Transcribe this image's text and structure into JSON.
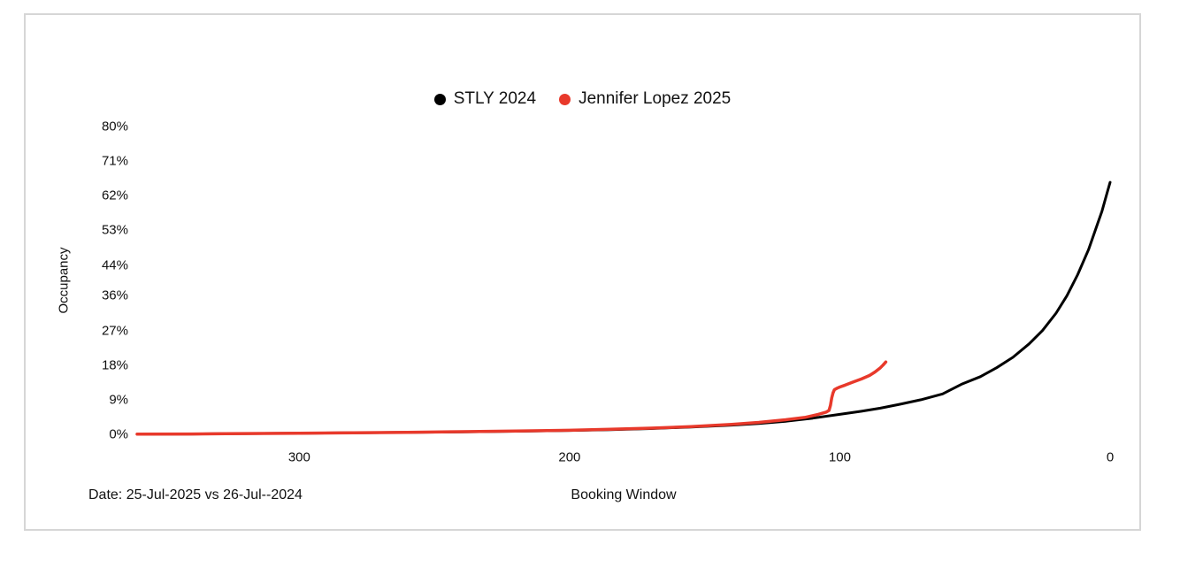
{
  "page": {
    "background": "#ffffff"
  },
  "card": {
    "border_color": "#d6d6d6",
    "background": "#ffffff"
  },
  "legend": [
    {
      "label": "STLY 2024",
      "color": "#000000"
    },
    {
      "label": "Jennifer Lopez 2025",
      "color": "#e8392b"
    }
  ],
  "footer": {
    "date_note": "Date: 25-Jul-2025 vs 26-Jul--2024"
  },
  "chart_data": {
    "type": "line",
    "title": "",
    "xlabel": "Booking Window",
    "ylabel": "Occupancy",
    "x_axis_reversed": true,
    "x_range": [
      360,
      0
    ],
    "y_range_pct": [
      0,
      80
    ],
    "grid": false,
    "legend_position": "top-center",
    "x_ticks": [
      {
        "label": "300",
        "value": 300
      },
      {
        "label": "200",
        "value": 200
      },
      {
        "label": "100",
        "value": 100
      },
      {
        "label": "0",
        "value": 0
      }
    ],
    "y_ticks": [
      {
        "label": "80%",
        "value": 80
      },
      {
        "label": "71%",
        "value": 71
      },
      {
        "label": "62%",
        "value": 62
      },
      {
        "label": "53%",
        "value": 53
      },
      {
        "label": "44%",
        "value": 44
      },
      {
        "label": "36%",
        "value": 36
      },
      {
        "label": "27%",
        "value": 27
      },
      {
        "label": "18%",
        "value": 18
      },
      {
        "label": "9%",
        "value": 9
      },
      {
        "label": "0%",
        "value": 0
      }
    ],
    "series": [
      {
        "name": "STLY 2024",
        "color": "#000000",
        "stroke_width": 3,
        "points": [
          [
            360,
            0.05
          ],
          [
            340,
            0.1
          ],
          [
            320,
            0.2
          ],
          [
            300,
            0.3
          ],
          [
            280,
            0.4
          ],
          [
            260,
            0.5
          ],
          [
            240,
            0.65
          ],
          [
            220,
            0.8
          ],
          [
            200,
            1.0
          ],
          [
            185,
            1.2
          ],
          [
            170,
            1.5
          ],
          [
            155,
            1.9
          ],
          [
            140,
            2.4
          ],
          [
            130,
            2.8
          ],
          [
            120,
            3.4
          ],
          [
            110,
            4.2
          ],
          [
            100,
            5.2
          ],
          [
            92,
            6.0
          ],
          [
            85,
            6.8
          ],
          [
            78,
            7.8
          ],
          [
            70,
            9.0
          ],
          [
            62,
            10.5
          ],
          [
            55,
            13.0
          ],
          [
            48,
            15.0
          ],
          [
            42,
            17.3
          ],
          [
            36,
            20.0
          ],
          [
            30,
            23.5
          ],
          [
            25,
            27.0
          ],
          [
            20,
            31.5
          ],
          [
            16,
            36.0
          ],
          [
            12,
            41.5
          ],
          [
            8,
            48.0
          ],
          [
            5,
            54.0
          ],
          [
            3,
            58.0
          ],
          [
            1,
            63.0
          ],
          [
            0,
            65.5
          ]
        ]
      },
      {
        "name": "Jennifer Lopez 2025",
        "color": "#e8392b",
        "stroke_width": 3.5,
        "points": [
          [
            360,
            0.05
          ],
          [
            340,
            0.1
          ],
          [
            320,
            0.2
          ],
          [
            300,
            0.3
          ],
          [
            280,
            0.42
          ],
          [
            260,
            0.52
          ],
          [
            240,
            0.68
          ],
          [
            220,
            0.85
          ],
          [
            200,
            1.05
          ],
          [
            185,
            1.3
          ],
          [
            170,
            1.6
          ],
          [
            155,
            2.0
          ],
          [
            140,
            2.6
          ],
          [
            130,
            3.1
          ],
          [
            120,
            3.8
          ],
          [
            113,
            4.4
          ],
          [
            108,
            5.2
          ],
          [
            105,
            5.8
          ],
          [
            104,
            6.2
          ],
          [
            103.5,
            7.5
          ],
          [
            103,
            9.5
          ],
          [
            102.5,
            10.8
          ],
          [
            102,
            11.6
          ],
          [
            101,
            12.0
          ],
          [
            100,
            12.3
          ],
          [
            98,
            12.8
          ],
          [
            95,
            13.6
          ],
          [
            92,
            14.4
          ],
          [
            89,
            15.3
          ],
          [
            87,
            16.2
          ],
          [
            85,
            17.3
          ],
          [
            84,
            18.0
          ],
          [
            83,
            18.8
          ]
        ]
      }
    ]
  }
}
